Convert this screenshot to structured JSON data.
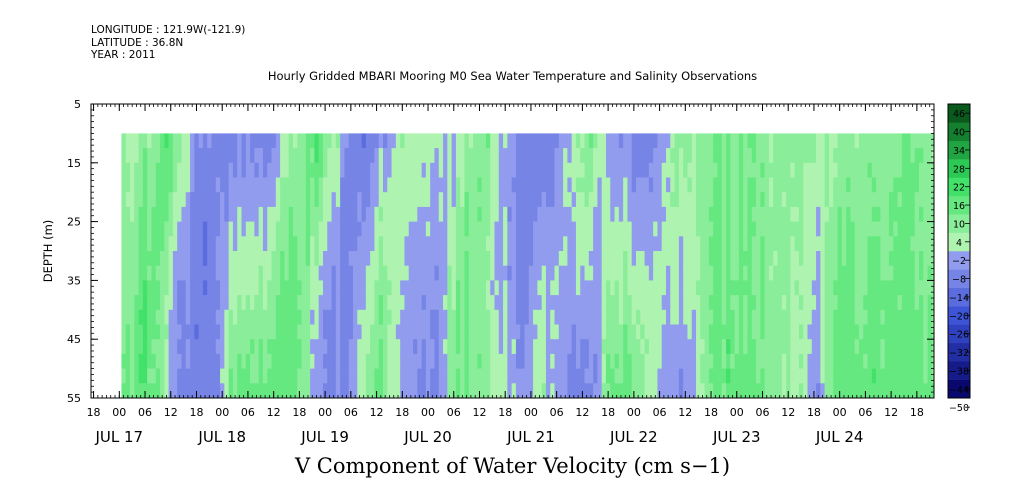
{
  "meta": {
    "longitude": "LONGITUDE : 121.9W(-121.9)",
    "latitude": "LATITUDE : 36.8N",
    "year": "YEAR : 2011"
  },
  "chart_data": {
    "type": "heatmap",
    "title": "Hourly Gridded MBARI Mooring M0 Sea Water Temperature and Salinity Observations",
    "colorbar_title": "V Component of Water Velocity (cm s−1)",
    "ylabel": "DEPTH (m)",
    "ylim": [
      5,
      55
    ],
    "y_inverted": true,
    "y_ticks": [
      5,
      15,
      25,
      35,
      45,
      55
    ],
    "data_depth_range": [
      10,
      55
    ],
    "x_hour_ticks": [
      "18",
      "00",
      "06",
      "12",
      "18",
      "00",
      "06",
      "12",
      "18",
      "00",
      "06",
      "12",
      "18",
      "00",
      "06",
      "12",
      "18",
      "00",
      "06",
      "12",
      "18",
      "00",
      "06",
      "12",
      "18",
      "00",
      "06",
      "12",
      "18",
      "00",
      "06",
      "12",
      "18"
    ],
    "x_day_labels": [
      {
        "label": "JUL 17",
        "hour": 0
      },
      {
        "label": "JUL 18",
        "hour": 24
      },
      {
        "label": "JUL 19",
        "hour": 48
      },
      {
        "label": "JUL 20",
        "hour": 72
      },
      {
        "label": "JUL 21",
        "hour": 96
      },
      {
        "label": "JUL 22",
        "hour": 120
      },
      {
        "label": "JUL 23",
        "hour": 144
      },
      {
        "label": "JUL 24",
        "hour": 168
      }
    ],
    "x_range_hours": [
      -6.6,
      190
    ],
    "data_x_start_hours": 0.5,
    "color_levels": [
      -50,
      -44,
      -38,
      -32,
      -26,
      -20,
      -14,
      -8,
      -2,
      4,
      10,
      16,
      22,
      28,
      34,
      40,
      46
    ],
    "colorbar_tick_labels": [
      "46",
      "40",
      "34",
      "28",
      "22",
      "16",
      "10",
      "4",
      "−2",
      "−8",
      "−14",
      "−20",
      "−26",
      "−32",
      "−38",
      "−44",
      "−50"
    ],
    "colors": {
      "neg_strong": "#08086e",
      "neg_mid": "#3b52d6",
      "neg_light": "#aab0f4",
      "pos_light": "#b4f4b4",
      "pos_mid": "#33e060",
      "pos_strong": "#0a5a1e",
      "near_zero": "#d8f8d8"
    },
    "field_keyframes": {
      "hours": [
        0,
        4,
        8,
        11,
        14,
        18,
        22,
        25,
        30,
        36,
        42,
        46,
        50,
        54,
        58,
        62,
        66,
        70,
        74,
        78,
        82,
        86,
        90,
        94,
        98,
        102,
        106,
        110,
        114,
        118,
        122,
        126,
        130,
        134,
        138,
        142,
        146,
        150,
        154,
        158,
        162,
        166,
        170,
        174,
        178,
        182,
        186,
        189
      ],
      "surface_cm_s": [
        6,
        2,
        10,
        16,
        8,
        -6,
        -12,
        -10,
        -10,
        -8,
        8,
        16,
        4,
        -10,
        -12,
        -4,
        6,
        4,
        0,
        -4,
        8,
        6,
        -4,
        -10,
        -14,
        -8,
        2,
        8,
        -4,
        -8,
        -10,
        -6,
        8,
        4,
        8,
        10,
        10,
        8,
        6,
        6,
        4,
        2,
        6,
        8,
        8,
        10,
        10,
        4
      ],
      "bottom_cm_s": [
        10,
        14,
        14,
        -4,
        -8,
        -10,
        -14,
        10,
        14,
        14,
        10,
        -10,
        -8,
        -6,
        10,
        8,
        -4,
        -8,
        -8,
        10,
        10,
        4,
        2,
        -6,
        6,
        -6,
        -12,
        -10,
        14,
        14,
        8,
        -4,
        -8,
        -4,
        12,
        14,
        12,
        10,
        6,
        4,
        -8,
        12,
        14,
        14,
        14,
        12,
        12,
        10
      ]
    }
  }
}
